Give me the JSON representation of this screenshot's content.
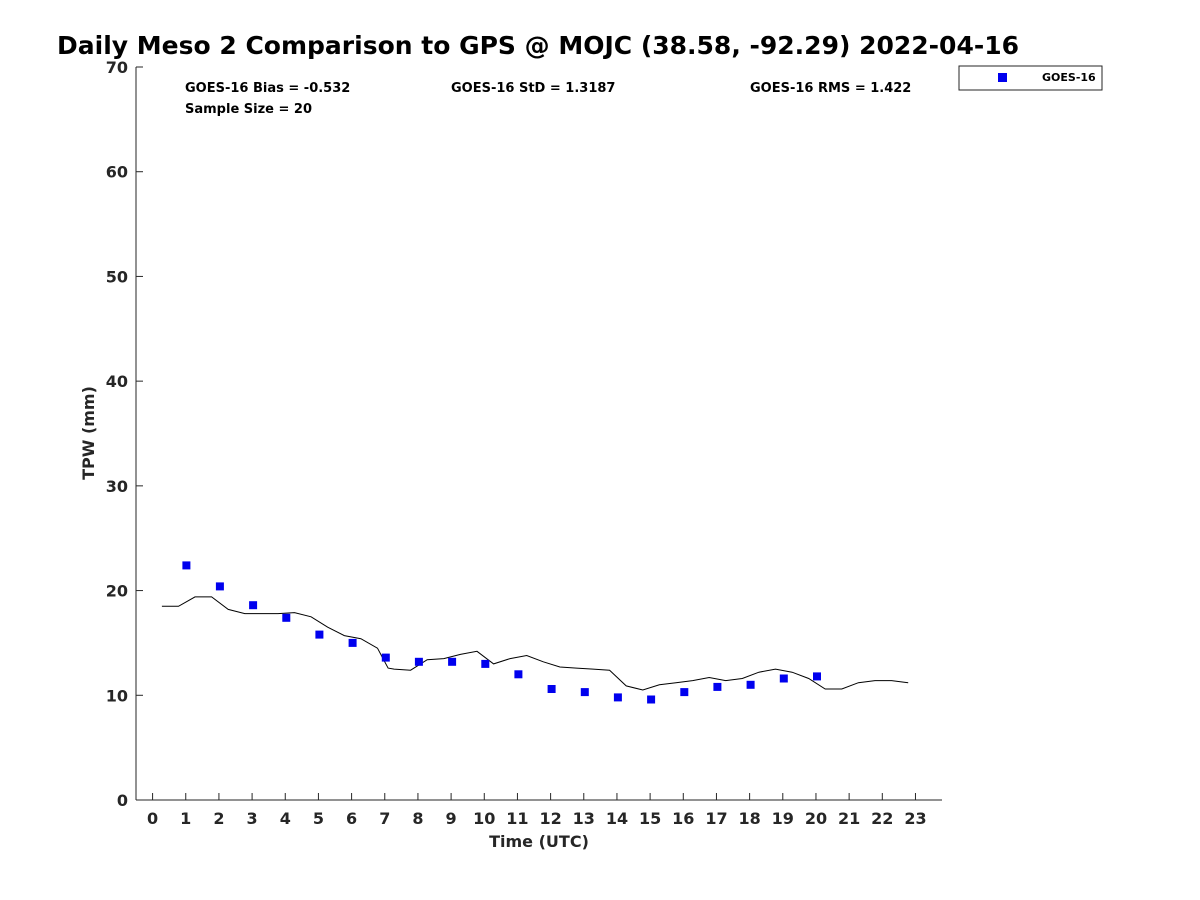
{
  "chart_data": {
    "type": "scatter",
    "title": "Daily Meso 2 Comparison to GPS @ MOJC (38.58, -92.29) 2022-04-16",
    "xlabel": "Time (UTC)",
    "ylabel": "TPW (mm)",
    "xlim": [
      -0.5,
      23.8
    ],
    "ylim": [
      0,
      70
    ],
    "x_ticks": [
      0,
      1,
      2,
      3,
      4,
      5,
      6,
      7,
      8,
      9,
      10,
      11,
      12,
      13,
      14,
      15,
      16,
      17,
      18,
      19,
      20,
      21,
      22,
      23
    ],
    "y_ticks": [
      0,
      10,
      20,
      30,
      40,
      50,
      60,
      70
    ],
    "grid": false,
    "legend_position": "top-right",
    "stats": {
      "bias": "GOES-16 Bias = -0.532",
      "std": "GOES-16 StD = 1.3187",
      "rms": "GOES-16 RMS = 1.422",
      "sample_size": "Sample Size = 20"
    },
    "series": [
      {
        "name": "GOES-16",
        "kind": "scatter",
        "color": "#0000ee",
        "x": [
          1.02,
          2.03,
          3.03,
          4.03,
          5.03,
          6.03,
          7.03,
          8.03,
          9.03,
          10.03,
          11.03,
          12.03,
          13.03,
          14.03,
          15.03,
          16.03,
          17.03,
          18.03,
          19.03,
          20.03
        ],
        "y": [
          22.4,
          20.4,
          18.6,
          17.4,
          15.8,
          15.0,
          13.6,
          13.2,
          13.2,
          13.0,
          12.0,
          10.6,
          10.3,
          9.8,
          9.6,
          10.3,
          10.8,
          11.0,
          11.6,
          11.8
        ]
      },
      {
        "kind": "line",
        "color": "#000000",
        "x": [
          0.28,
          0.78,
          1.28,
          1.78,
          2.28,
          2.78,
          3.28,
          3.78,
          4.28,
          4.78,
          5.28,
          5.78,
          6.28,
          6.78,
          7.1,
          7.28,
          7.78,
          8.28,
          8.78,
          9.28,
          9.78,
          10.28,
          10.78,
          11.28,
          11.78,
          12.28,
          12.78,
          13.28,
          13.78,
          14.28,
          14.78,
          15.28,
          15.78,
          16.28,
          16.78,
          17.28,
          17.78,
          18.28,
          18.78,
          19.28,
          19.78,
          20.28,
          20.78,
          21.28,
          21.78,
          22.28,
          22.78
        ],
        "y": [
          18.5,
          18.5,
          19.4,
          19.4,
          18.2,
          17.8,
          17.8,
          17.8,
          17.9,
          17.5,
          16.5,
          15.7,
          15.4,
          14.5,
          12.6,
          12.5,
          12.4,
          13.4,
          13.5,
          13.9,
          14.2,
          13.0,
          13.5,
          13.8,
          13.2,
          12.7,
          12.6,
          12.5,
          12.4,
          10.9,
          10.5,
          11.0,
          11.2,
          11.4,
          11.7,
          11.4,
          11.6,
          12.2,
          12.5,
          12.2,
          11.6,
          10.6,
          10.6,
          11.2,
          11.4,
          11.4,
          11.2
        ]
      }
    ]
  }
}
